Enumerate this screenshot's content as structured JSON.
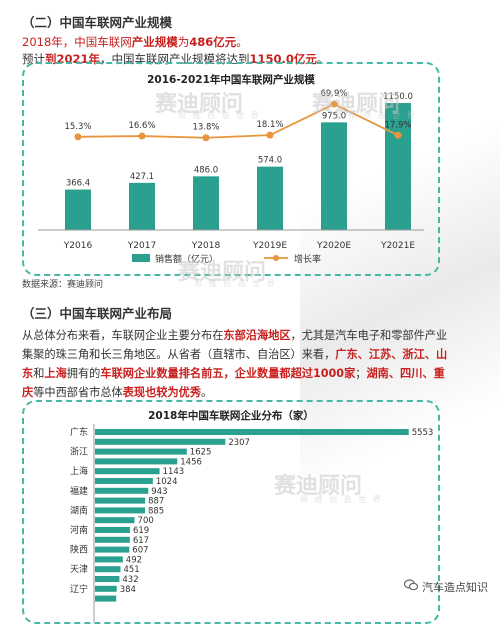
{
  "section1": {
    "title": "（二）中国车联网产业规模",
    "line1_part1": "2018年，中国车联网",
    "line1_part2": "产业规模",
    "line1_part3": "为",
    "line1_part4": "486亿元",
    "line1_part5": "。",
    "line2_part1": "预计",
    "line2_part2": "到2021年",
    "line2_part3": "，中国车联网产业规模将达到",
    "line2_part4": "1150.0亿元",
    "line2_part5": "。"
  },
  "watermark": {
    "main": "赛迪顾问",
    "sub": "思 维 创 造 世 界"
  },
  "chart1": {
    "title": "2016-2021年中国车联网产业规模",
    "source": "数据来源：赛迪顾问",
    "legend_bar": "销售额（亿元）",
    "legend_line": "增长率",
    "bar_color": "#2aa08e",
    "line_color": "#e8953d"
  },
  "section2": {
    "title": "（三）中国车联网产业布局",
    "para": {
      "l1a": "从总体分布来看，车联网企业主要分布在",
      "l1b": "东部沿海地区",
      "l1c": "，尤其是汽车电子和零部件产业",
      "l2a": "集聚的珠三角和长三角地区。从省者（直辖市、自治区）来看，",
      "l2b": "广东、江苏、浙江、山",
      "l3a": "东",
      "l3b": "和",
      "l3c": "上海",
      "l3d": "拥有的",
      "l3e": "车联网企业数量排名前五，企业数量都超过1000家",
      "l3f": "；",
      "l3g": "湖南、四川、重",
      "l4a": "庆",
      "l4b": "等中西部省市总体",
      "l4c": "表现也较为优秀",
      "l4d": "。"
    }
  },
  "chart2": {
    "title": "2018年中国车联网企业分布（家）",
    "bar_color": "#2aa08e"
  },
  "footer": {
    "text": "汽车造点知识"
  },
  "chart_data": [
    {
      "type": "bar",
      "title": "2016-2021年中国车联网产业规模",
      "categories": [
        "Y2016",
        "Y2017",
        "Y2018",
        "Y2019E",
        "Y2020E",
        "Y2021E"
      ],
      "series": [
        {
          "name": "销售额（亿元）",
          "type": "bar",
          "values": [
            366.4,
            427.1,
            486.0,
            574.0,
            975.0,
            1150.0
          ],
          "labels": [
            "366.4",
            "427.1",
            "486.0",
            "574.0",
            "975.0",
            "1150.0"
          ]
        },
        {
          "name": "增长率",
          "type": "line",
          "values": [
            15.3,
            16.6,
            13.8,
            18.1,
            69.9,
            17.9
          ],
          "labels": [
            "15.3%",
            "16.6%",
            "13.8%",
            "18.1%",
            "69.9%",
            "17.9%"
          ]
        }
      ],
      "ylim": [
        0,
        1250
      ],
      "y2lim": [
        -140,
        90
      ],
      "legend": "bottom",
      "grid": false
    },
    {
      "type": "bar",
      "orientation": "horizontal",
      "title": "2018年中国车联网企业分布（家）",
      "categories": [
        "广东",
        "",
        "浙江",
        "",
        "上海",
        "",
        "福建",
        "",
        "湖南",
        "",
        "河南",
        "",
        "陕西",
        "",
        "天津",
        "",
        "辽宁",
        ""
      ],
      "values": [
        5553,
        2307,
        1625,
        1456,
        1143,
        1024,
        943,
        887,
        885,
        700,
        619,
        617,
        607,
        492,
        451,
        432,
        384,
        375
      ],
      "labels": [
        "5553",
        "2307",
        "1625",
        "1456",
        "1143",
        "1024",
        "943",
        "887",
        "885",
        "700",
        "619",
        "617",
        "607",
        "492",
        "451",
        "432",
        "384",
        ""
      ],
      "xlim": [
        0,
        5700
      ],
      "grid": false
    }
  ]
}
